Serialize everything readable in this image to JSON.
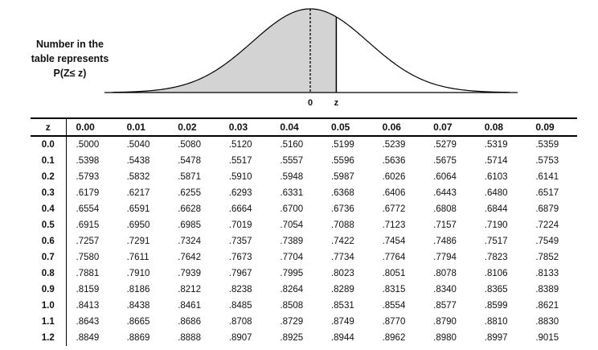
{
  "caption": {
    "line1": "Number in the",
    "line2": "table represents",
    "line3": "P(Z≤ z)"
  },
  "figure": {
    "label_zero": "0",
    "label_z": "z",
    "shaded_up_to_z": 0.45,
    "shade_color": "#d3d3d3"
  },
  "table": {
    "header": [
      "z",
      "0.00",
      "0.01",
      "0.02",
      "0.03",
      "0.04",
      "0.05",
      "0.06",
      "0.07",
      "0.08",
      "0.09"
    ],
    "rows": [
      [
        "0.0",
        ".5000",
        ".5040",
        ".5080",
        ".5120",
        ".5160",
        ".5199",
        ".5239",
        ".5279",
        ".5319",
        ".5359"
      ],
      [
        "0.1",
        ".5398",
        ".5438",
        ".5478",
        ".5517",
        ".5557",
        ".5596",
        ".5636",
        ".5675",
        ".5714",
        ".5753"
      ],
      [
        "0.2",
        ".5793",
        ".5832",
        ".5871",
        ".5910",
        ".5948",
        ".5987",
        ".6026",
        ".6064",
        ".6103",
        ".6141"
      ],
      [
        "0.3",
        ".6179",
        ".6217",
        ".6255",
        ".6293",
        ".6331",
        ".6368",
        ".6406",
        ".6443",
        ".6480",
        ".6517"
      ],
      [
        "0.4",
        ".6554",
        ".6591",
        ".6628",
        ".6664",
        ".6700",
        ".6736",
        ".6772",
        ".6808",
        ".6844",
        ".6879"
      ],
      [
        "0.5",
        ".6915",
        ".6950",
        ".6985",
        ".7019",
        ".7054",
        ".7088",
        ".7123",
        ".7157",
        ".7190",
        ".7224"
      ],
      [
        "0.6",
        ".7257",
        ".7291",
        ".7324",
        ".7357",
        ".7389",
        ".7422",
        ".7454",
        ".7486",
        ".7517",
        ".7549"
      ],
      [
        "0.7",
        ".7580",
        ".7611",
        ".7642",
        ".7673",
        ".7704",
        ".7734",
        ".7764",
        ".7794",
        ".7823",
        ".7852"
      ],
      [
        "0.8",
        ".7881",
        ".7910",
        ".7939",
        ".7967",
        ".7995",
        ".8023",
        ".8051",
        ".8078",
        ".8106",
        ".8133"
      ],
      [
        "0.9",
        ".8159",
        ".8186",
        ".8212",
        ".8238",
        ".8264",
        ".8289",
        ".8315",
        ".8340",
        ".8365",
        ".8389"
      ],
      [
        "1.0",
        ".8413",
        ".8438",
        ".8461",
        ".8485",
        ".8508",
        ".8531",
        ".8554",
        ".8577",
        ".8599",
        ".8621"
      ],
      [
        "1.1",
        ".8643",
        ".8665",
        ".8686",
        ".8708",
        ".8729",
        ".8749",
        ".8770",
        ".8790",
        ".8810",
        ".8830"
      ],
      [
        "1.2",
        ".8849",
        ".8869",
        ".8888",
        ".8907",
        ".8925",
        ".8944",
        ".8962",
        ".8980",
        ".8997",
        ".9015"
      ]
    ]
  }
}
